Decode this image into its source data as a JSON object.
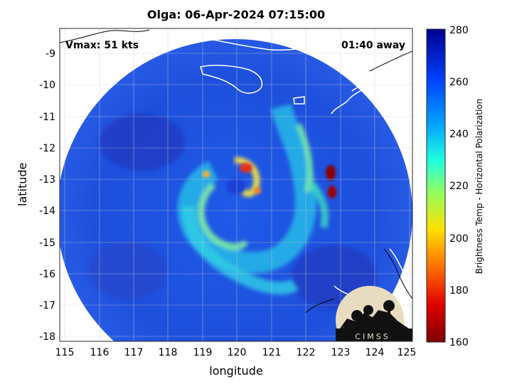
{
  "title": "Olga: 06-Apr-2024 07:15:00",
  "vmax_label": "Vmax: 51 kts",
  "time_away": "01:40 away",
  "xlabel": "longitude",
  "ylabel": "latitude",
  "colorbar": {
    "label": "Brightness Temp - Horizontal Polarization",
    "min": 160,
    "max": 280,
    "ticks": [
      "160",
      "180",
      "200",
      "220",
      "240",
      "260",
      "280"
    ]
  },
  "axes": {
    "xlim": [
      114.9,
      125.1
    ],
    "ylim": [
      -18.2,
      -8.35
    ],
    "xticks": [
      "115",
      "116",
      "117",
      "118",
      "119",
      "120",
      "121",
      "122",
      "123",
      "124",
      "125"
    ],
    "yticks": [
      "-9",
      "-10",
      "-11",
      "-12",
      "-13",
      "-14",
      "-15",
      "-16",
      "-17",
      "-18"
    ],
    "grid": true
  },
  "logo": {
    "text": "CIMSS"
  },
  "colors": {
    "background_swath": "#1e4fe0",
    "cold_core": "#8b0000",
    "coastline": "#ffffff"
  }
}
